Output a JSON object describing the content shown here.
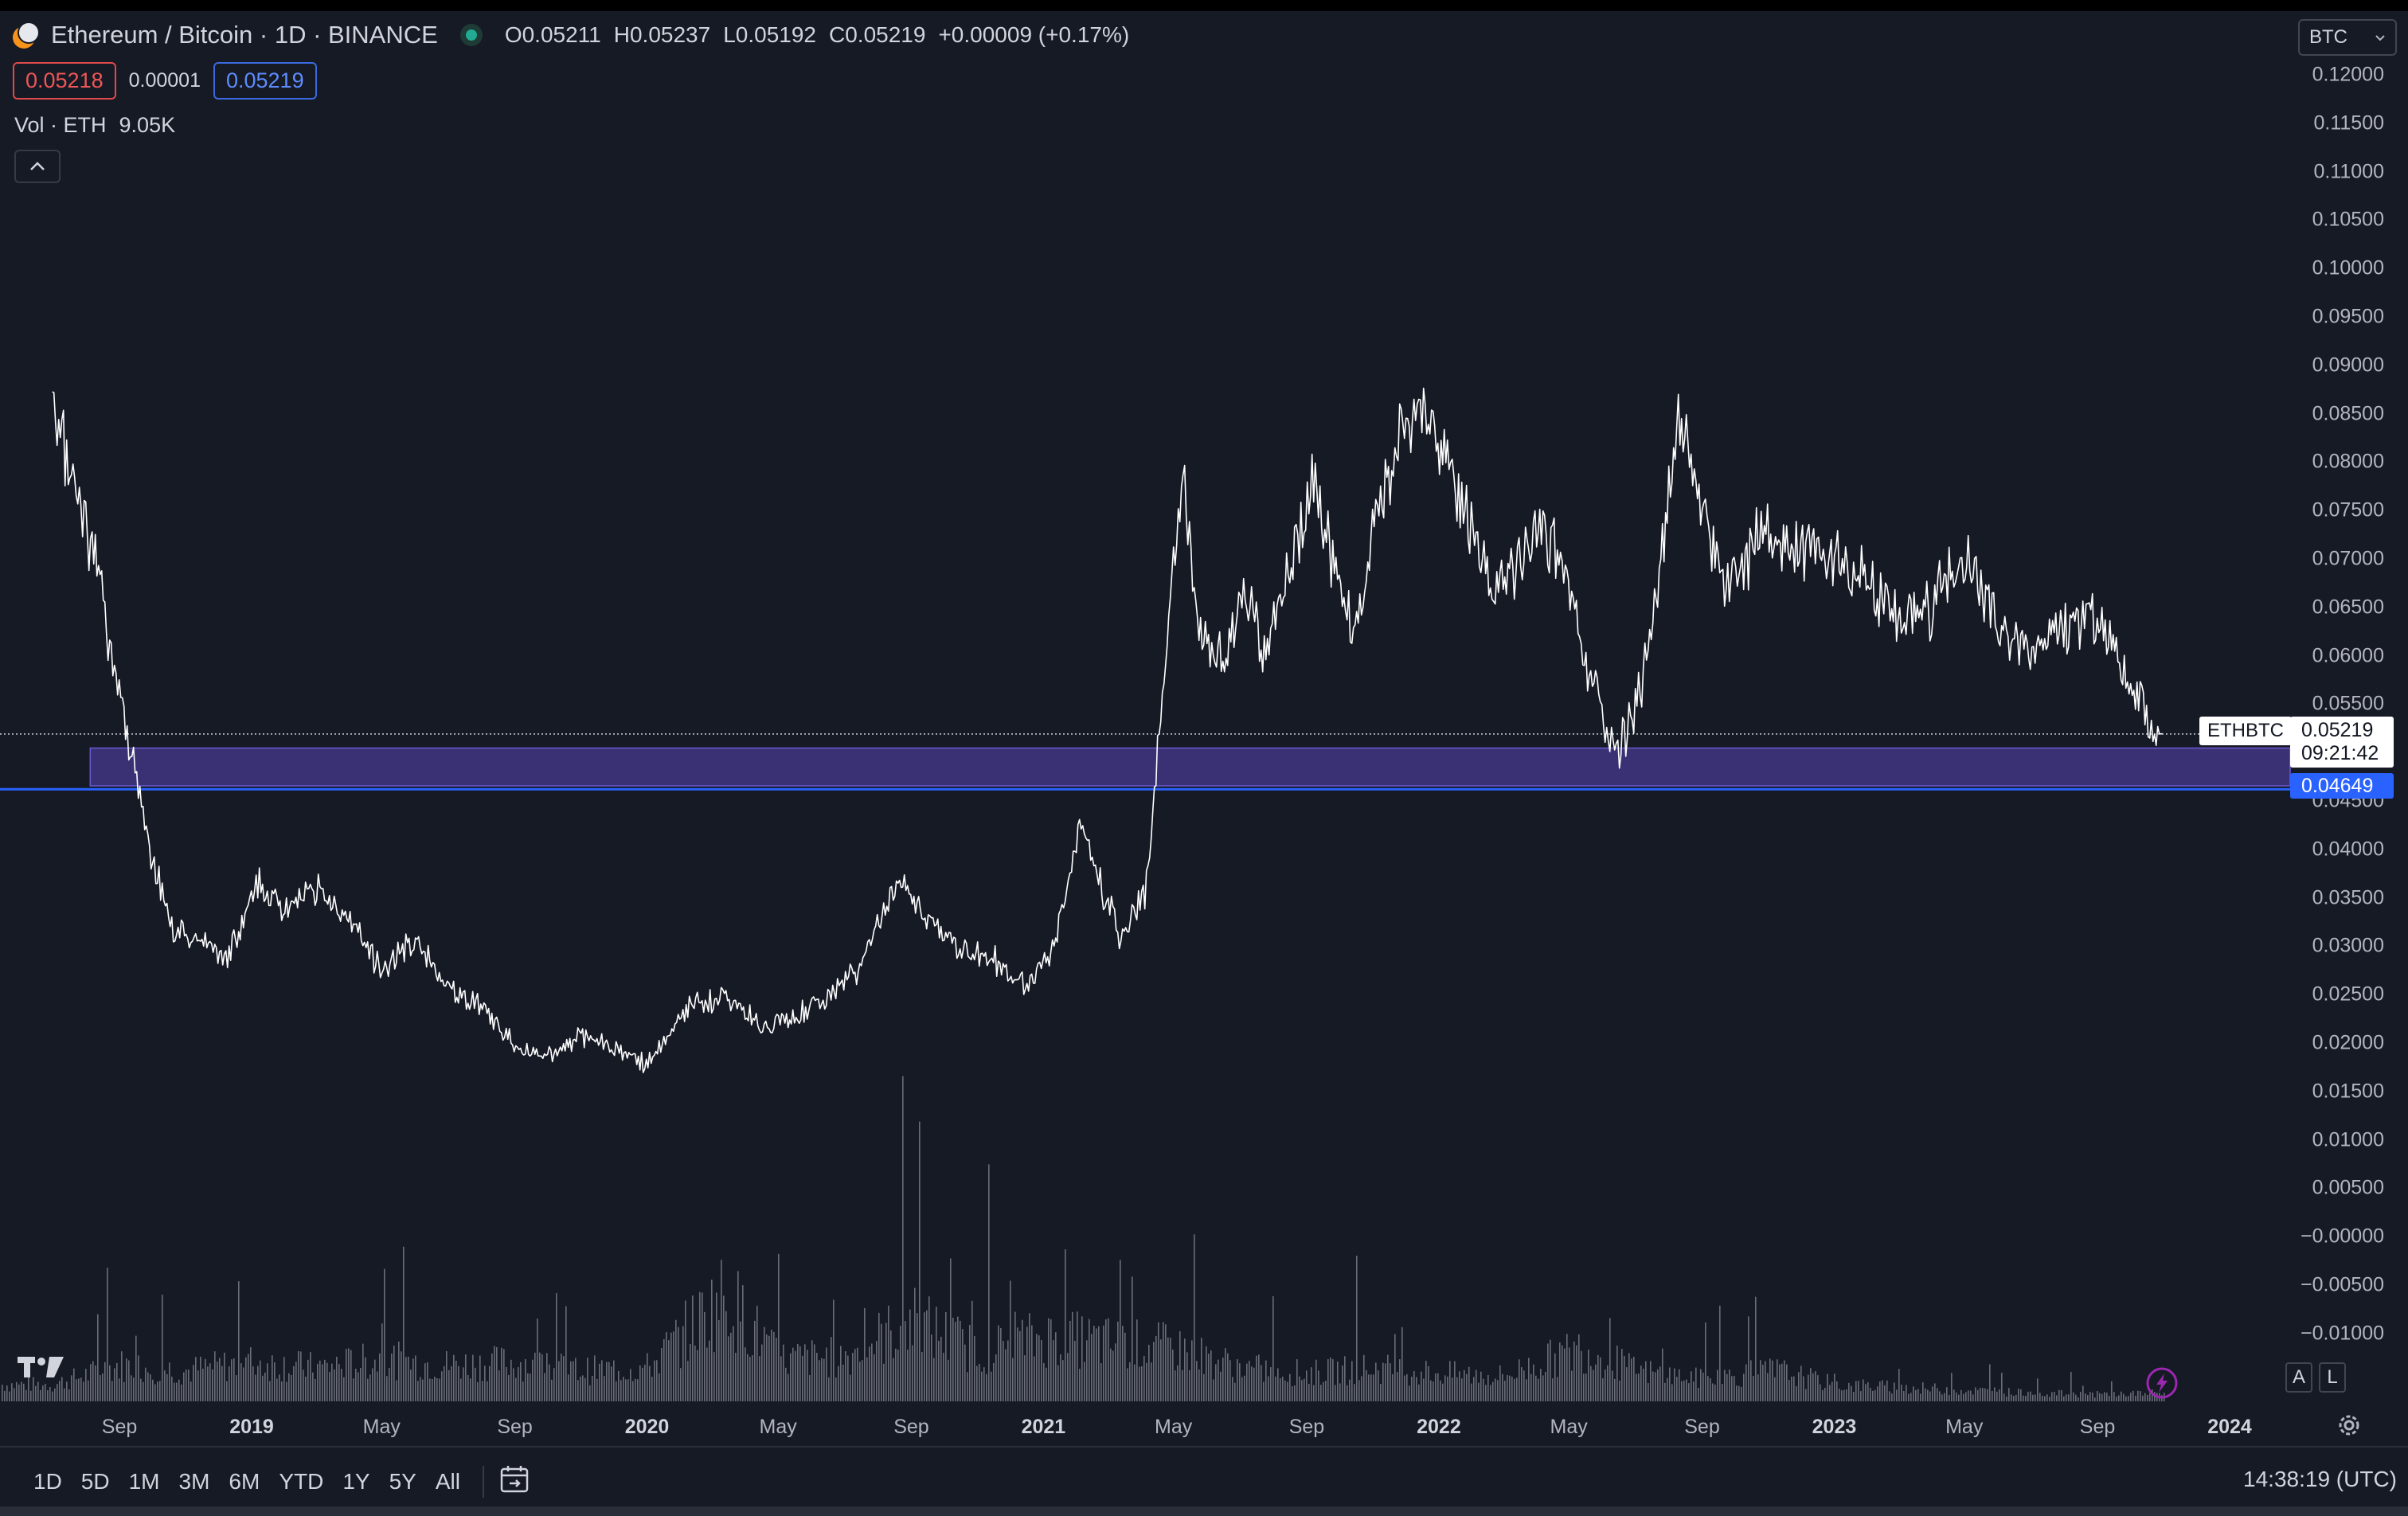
{
  "symbol": {
    "title": "Ethereum / Bitcoin · 1D · BINANCE",
    "ohlc": {
      "open_label": "O",
      "open": "0.05211",
      "high_label": "H",
      "high": "0.05237",
      "low_label": "L",
      "low": "0.05192",
      "close_label": "C",
      "close": "0.05219",
      "change": "+0.00009 (+0.17%)"
    },
    "bid": "0.05218",
    "spread": "0.00001",
    "ask": "0.05219"
  },
  "volume_legend": {
    "label": "Vol · ETH",
    "value": "9.05K"
  },
  "currency": "BTC",
  "price_tag": {
    "ticker": "ETHBTC",
    "price": "0.05219",
    "countdown": "09:21:42"
  },
  "horizontal_line_label": "0.04649",
  "scale_buttons": {
    "auto": "A",
    "log": "L"
  },
  "range_buttons": [
    "1D",
    "5D",
    "1M",
    "3M",
    "6M",
    "YTD",
    "1Y",
    "5Y",
    "All"
  ],
  "clock": "14:38:19 (UTC)",
  "colors": {
    "background": "#161a25",
    "zone": "#473a8f",
    "hline": "#2962ff",
    "price": "#ffffff",
    "volume": "#6a6d78"
  },
  "chart_data": {
    "type": "line",
    "symbol": "ETHBTC",
    "interval": "1D",
    "x_tick_labels": [
      "Sep",
      "2019",
      "May",
      "Sep",
      "2020",
      "May",
      "Sep",
      "2021",
      "May",
      "Sep",
      "2022",
      "May",
      "Sep",
      "2023",
      "May",
      "Sep",
      "2024"
    ],
    "y_tick_labels": [
      "0.12000",
      "0.11500",
      "0.11000",
      "0.10500",
      "0.10000",
      "0.09500",
      "0.09000",
      "0.08500",
      "0.08000",
      "0.07500",
      "0.07000",
      "0.06500",
      "0.06000",
      "0.05500",
      "0.05000",
      "0.04500",
      "0.04000",
      "0.03500",
      "0.03000",
      "0.02500",
      "0.02000",
      "0.01500",
      "0.01000",
      "0.00500",
      "−0.00000",
      "−0.00500",
      "−0.01000"
    ],
    "ylim": [
      -0.0135,
      0.122
    ],
    "x": [
      "2018-07-01",
      "2018-07-20",
      "2018-08-10",
      "2018-09-01",
      "2018-09-25",
      "2018-10-20",
      "2018-11-15",
      "2018-12-10",
      "2019-01-05",
      "2019-02-01",
      "2019-03-01",
      "2019-04-01",
      "2019-05-01",
      "2019-06-01",
      "2019-07-01",
      "2019-08-01",
      "2019-09-01",
      "2019-10-01",
      "2019-11-01",
      "2019-12-01",
      "2020-01-01",
      "2020-02-10",
      "2020-03-15",
      "2020-04-15",
      "2020-05-15",
      "2020-06-15",
      "2020-07-15",
      "2020-08-20",
      "2020-09-15",
      "2020-10-15",
      "2020-11-15",
      "2020-12-15",
      "2021-01-10",
      "2021-02-05",
      "2021-02-25",
      "2021-03-15",
      "2021-04-05",
      "2021-04-20",
      "2021-05-10",
      "2021-05-25",
      "2021-06-15",
      "2021-07-05",
      "2021-07-25",
      "2021-08-15",
      "2021-09-05",
      "2021-09-25",
      "2021-10-15",
      "2021-11-05",
      "2021-11-25",
      "2021-12-10",
      "2022-01-01",
      "2022-01-25",
      "2022-02-20",
      "2022-03-15",
      "2022-04-05",
      "2022-04-25",
      "2022-05-20",
      "2022-06-15",
      "2022-07-05",
      "2022-07-25",
      "2022-08-10",
      "2022-08-25",
      "2022-09-15",
      "2022-10-05",
      "2022-10-25",
      "2022-11-15",
      "2022-12-10",
      "2023-01-05",
      "2023-02-01",
      "2023-03-01",
      "2023-04-01",
      "2023-04-20",
      "2023-05-10",
      "2023-06-01",
      "2023-07-01",
      "2023-07-20",
      "2023-08-15",
      "2023-09-10",
      "2023-10-01",
      "2023-10-20",
      "2023-11-01"
    ],
    "y": [
      0.084,
      0.079,
      0.07,
      0.057,
      0.042,
      0.032,
      0.031,
      0.029,
      0.037,
      0.034,
      0.036,
      0.033,
      0.028,
      0.031,
      0.026,
      0.024,
      0.02,
      0.019,
      0.021,
      0.02,
      0.018,
      0.024,
      0.025,
      0.022,
      0.023,
      0.025,
      0.028,
      0.037,
      0.033,
      0.03,
      0.029,
      0.026,
      0.03,
      0.043,
      0.036,
      0.031,
      0.036,
      0.055,
      0.08,
      0.063,
      0.059,
      0.068,
      0.06,
      0.068,
      0.078,
      0.07,
      0.062,
      0.075,
      0.082,
      0.086,
      0.082,
      0.075,
      0.067,
      0.07,
      0.074,
      0.07,
      0.058,
      0.05,
      0.056,
      0.07,
      0.085,
      0.08,
      0.069,
      0.067,
      0.073,
      0.071,
      0.072,
      0.07,
      0.068,
      0.064,
      0.065,
      0.069,
      0.07,
      0.063,
      0.061,
      0.062,
      0.064,
      0.063,
      0.057,
      0.053,
      0.0522
    ],
    "current_price": 0.05219,
    "horizontal_line": 0.04649,
    "zone": [
      0.04684,
      0.05074
    ],
    "zone_start": "2018-08-05",
    "volume_series": {
      "name": "Vol · ETH",
      "x": [
        "2018-07-01",
        "2018-09-01",
        "2018-11-01",
        "2019-01-01",
        "2019-03-01",
        "2019-05-01",
        "2019-07-01",
        "2019-09-01",
        "2019-11-01",
        "2020-01-01",
        "2020-03-13",
        "2020-05-01",
        "2020-07-01",
        "2020-09-01",
        "2020-11-01",
        "2021-01-01",
        "2021-03-01",
        "2021-05-01",
        "2021-07-01",
        "2021-09-01",
        "2021-11-01",
        "2022-01-01",
        "2022-03-01",
        "2022-05-12",
        "2022-07-01",
        "2022-09-01",
        "2022-11-09",
        "2023-01-01",
        "2023-03-01",
        "2023-05-01",
        "2023-07-01",
        "2023-09-01",
        "2023-11-01"
      ],
      "y": [
        0.6,
        1.3,
        1.1,
        1.4,
        1.2,
        1.5,
        1.3,
        1.4,
        1.1,
        1.2,
        3.8,
        1.5,
        1.6,
        2.9,
        1.8,
        2.3,
        2.1,
        1.9,
        1.2,
        1.0,
        1.2,
        1.0,
        0.9,
        1.9,
        1.1,
        0.8,
        1.1,
        0.6,
        0.5,
        0.4,
        0.3,
        0.25,
        0.3
      ]
    }
  }
}
